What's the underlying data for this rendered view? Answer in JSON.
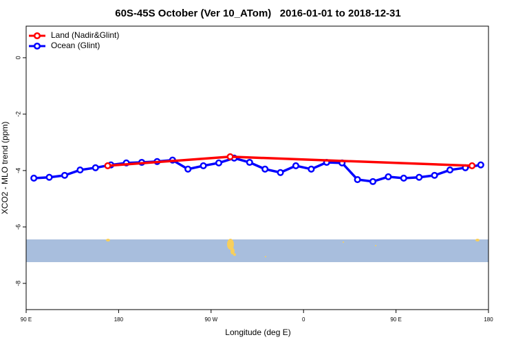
{
  "chart_data": {
    "type": "line",
    "title": "60S-45S October (Ver 10_ATom)   2016-01-01 to 2018-12-31",
    "x_label": "Longitude (deg E)",
    "y_label": "XCO2 - MLO trend (ppm)",
    "xlim": [
      90,
      540
    ],
    "xticks": [
      {
        "value": 90,
        "label": "90 E"
      },
      {
        "value": 180,
        "label": "180"
      },
      {
        "value": 270,
        "label": "90 W"
      },
      {
        "value": 360,
        "label": "0"
      },
      {
        "value": 450,
        "label": "90 E"
      },
      {
        "value": 540,
        "label": "180"
      }
    ],
    "ylim": [
      -8.93,
      1.12
    ],
    "yticks": [
      0,
      -2,
      -4,
      -6,
      -8
    ],
    "legend": "top-left",
    "series": [
      {
        "name": "Land (Nadir&Glint)",
        "color": "#ff0000",
        "x": [
          169.4,
          288.6,
          524
        ],
        "values": [
          -3.83,
          -3.51,
          -3.83
        ]
      },
      {
        "name": "Ocean (Glint)",
        "color": "#0000ff",
        "x": [
          97.5,
          112.5,
          127.5,
          142.5,
          157.5,
          172.5,
          187.5,
          202.5,
          217.5,
          232.5,
          247.5,
          262.5,
          277.5,
          292.5,
          307.5,
          322.5,
          337.5,
          352.5,
          367.5,
          382.5,
          397.5,
          412.5,
          427.5,
          442.5,
          457.5,
          472.5,
          487.5,
          502.5,
          517.5,
          532.5
        ],
        "values": [
          -4.27,
          -4.24,
          -4.17,
          -3.98,
          -3.9,
          -3.8,
          -3.73,
          -3.71,
          -3.68,
          -3.63,
          -3.95,
          -3.83,
          -3.73,
          -3.56,
          -3.71,
          -3.95,
          -4.07,
          -3.83,
          -3.95,
          -3.71,
          -3.73,
          -4.32,
          -4.39,
          -4.22,
          -4.27,
          -4.24,
          -4.17,
          -3.98,
          -3.9,
          -3.8
        ]
      }
    ]
  }
}
